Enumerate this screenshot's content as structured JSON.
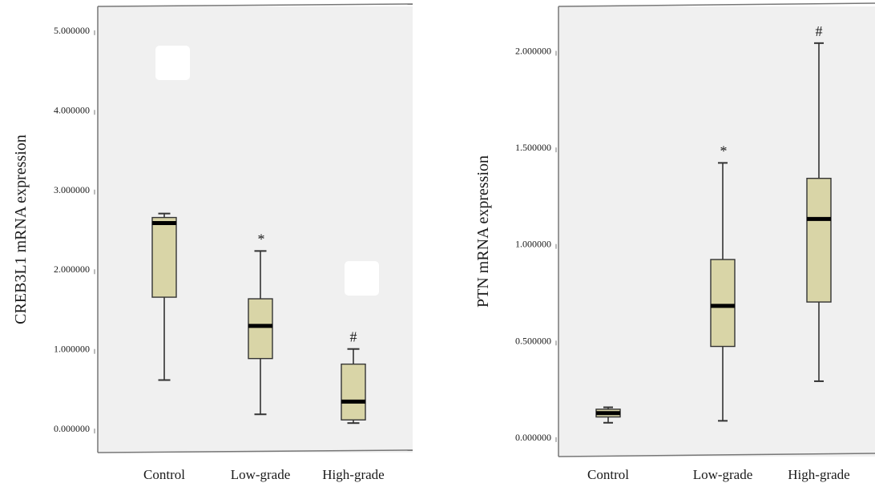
{
  "colors": {
    "plot_background": "#f0f0f0",
    "box_fill": "#d9d5a7",
    "box_stroke": "#333333",
    "median": "#000000",
    "whisker": "#333333",
    "frame": "#777777",
    "mask": "#ffffff"
  },
  "chart_data": [
    {
      "type": "box",
      "ylabel": "CREB3L1 mRNA expression",
      "xlabel": "",
      "title": "",
      "ylim": [
        -0.3,
        5.3
      ],
      "yticks": [
        0,
        1,
        2,
        3,
        4,
        5
      ],
      "ytick_labels": [
        "0.000000",
        "1.000000",
        "2.000000",
        "3.000000",
        "4.000000",
        "5.000000"
      ],
      "categories": [
        "Control",
        "Low-grade",
        "High-grade"
      ],
      "boxes": [
        {
          "category": "Control",
          "min": 0.61,
          "q1": 1.65,
          "median": 2.58,
          "q3": 2.65,
          "max": 2.7,
          "annotation": ""
        },
        {
          "category": "Low-grade",
          "min": 0.18,
          "q1": 0.88,
          "median": 1.29,
          "q3": 1.63,
          "max": 2.23,
          "annotation": "*"
        },
        {
          "category": "High-grade",
          "min": 0.07,
          "q1": 0.11,
          "median": 0.34,
          "q3": 0.81,
          "max": 1.0,
          "annotation": "#"
        }
      ],
      "masks": [
        {
          "x": 0.5,
          "y": 4.58
        },
        {
          "x": 2.95,
          "y": 1.9
        }
      ]
    },
    {
      "type": "box",
      "ylabel": "PTN mRNA expression",
      "xlabel": "",
      "title": "",
      "ylim": [
        -0.1,
        2.23
      ],
      "yticks": [
        0,
        0.5,
        1,
        1.5,
        2
      ],
      "ytick_labels": [
        "0.000000",
        "0.500000",
        "1.000000",
        "1.500000",
        "2.000000"
      ],
      "categories": [
        "Control",
        "Low-grade",
        "High-grade"
      ],
      "boxes": [
        {
          "category": "Control",
          "min": 0.075,
          "q1": 0.105,
          "median": 0.125,
          "q3": 0.145,
          "max": 0.155,
          "annotation": ""
        },
        {
          "category": "Low-grade",
          "min": 0.085,
          "q1": 0.47,
          "median": 0.68,
          "q3": 0.92,
          "max": 1.42,
          "annotation": "*"
        },
        {
          "category": "High-grade",
          "min": 0.29,
          "q1": 0.7,
          "median": 1.13,
          "q3": 1.34,
          "max": 2.04,
          "annotation": "#"
        }
      ],
      "masks": []
    }
  ]
}
